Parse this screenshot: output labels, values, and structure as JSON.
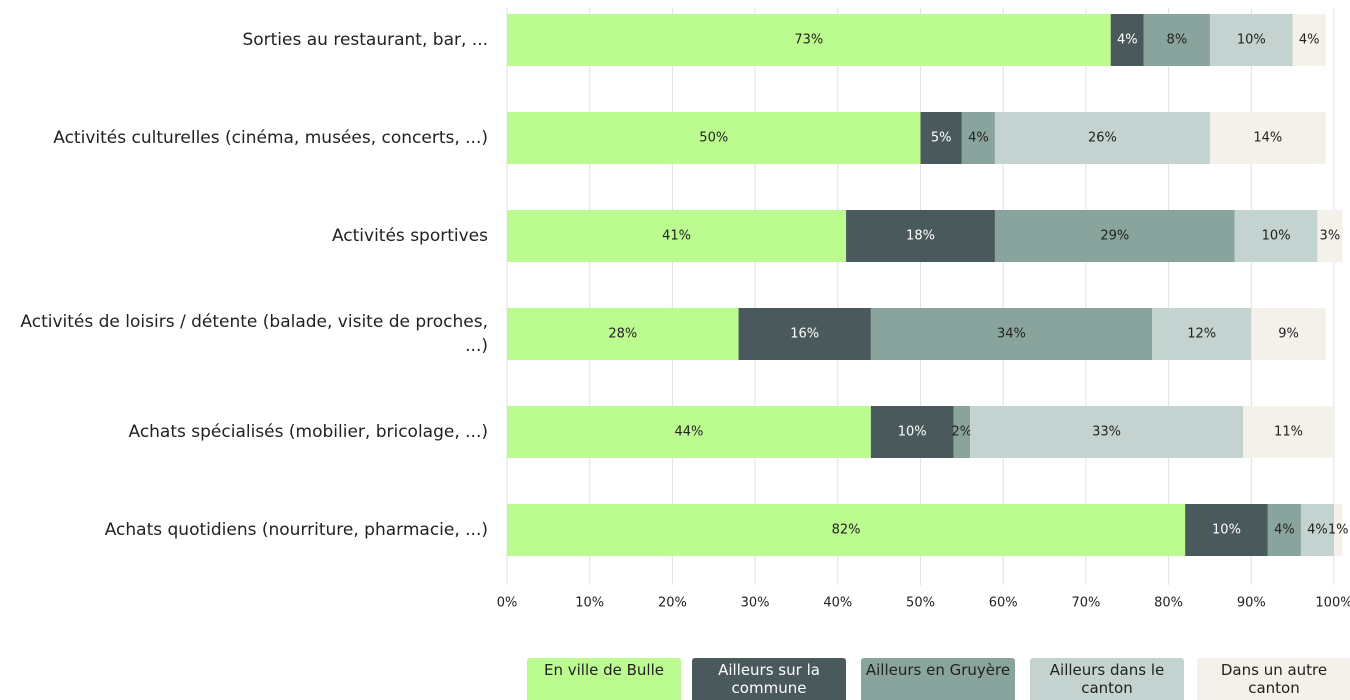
{
  "chart_data": {
    "type": "stacked-bar-horizontal",
    "categories": [
      "Sorties au restaurant, bar, ...",
      "Activités culturelles (cinéma, musées, concerts, ...)",
      "Activités sportives",
      "Activités de loisirs / détente (balade, visite de proches, ...)",
      "Achats spécialisés (mobilier, bricolage, ...)",
      "Achats quotidiens (nourriture, pharmacie, ...)"
    ],
    "series": [
      {
        "name": "En ville de Bulle",
        "color": "#bcfb8f",
        "values": [
          73,
          50,
          41,
          28,
          44,
          82
        ],
        "value_labels": [
          "73%",
          "50%",
          "41%",
          "28%",
          "44%",
          "82%"
        ]
      },
      {
        "name": "Ailleurs sur la commune",
        "color": "#4a595b",
        "values": [
          4,
          5,
          18,
          16,
          10,
          10
        ],
        "value_labels": [
          "4%",
          "5%",
          "18%",
          "16%",
          "10%",
          "10%"
        ]
      },
      {
        "name": "Ailleurs en Gruyère",
        "color": "#89a49d",
        "values": [
          8,
          4,
          29,
          34,
          2,
          4
        ],
        "value_labels": [
          "8%",
          "4%",
          "29%",
          "34%",
          "2%",
          "4%"
        ]
      },
      {
        "name": "Ailleurs dans le canton",
        "color": "#c4d3cf",
        "values": [
          10,
          26,
          10,
          12,
          33,
          4
        ],
        "value_labels": [
          "10%",
          "26%",
          "10%",
          "12%",
          "33%",
          "4%"
        ]
      },
      {
        "name": "Dans un autre canton",
        "color": "#f4f1ea",
        "values": [
          4,
          14,
          3,
          9,
          11,
          1
        ],
        "value_labels": [
          "4%",
          "14%",
          "3%",
          "9%",
          "11%",
          "1%"
        ]
      }
    ],
    "xlim": [
      0,
      100
    ],
    "xticks": [
      {
        "value": 0,
        "label": "0%"
      },
      {
        "value": 10,
        "label": "10%"
      },
      {
        "value": 20,
        "label": "20%"
      },
      {
        "value": 30,
        "label": "30%"
      },
      {
        "value": 40,
        "label": "40%"
      },
      {
        "value": 50,
        "label": "50%"
      },
      {
        "value": 60,
        "label": "60%"
      },
      {
        "value": 70,
        "label": "70%"
      },
      {
        "value": 80,
        "label": "80%"
      },
      {
        "value": 90,
        "label": "90%"
      },
      {
        "value": 100,
        "label": "100%"
      }
    ],
    "grid": true,
    "legend": "bottom"
  }
}
